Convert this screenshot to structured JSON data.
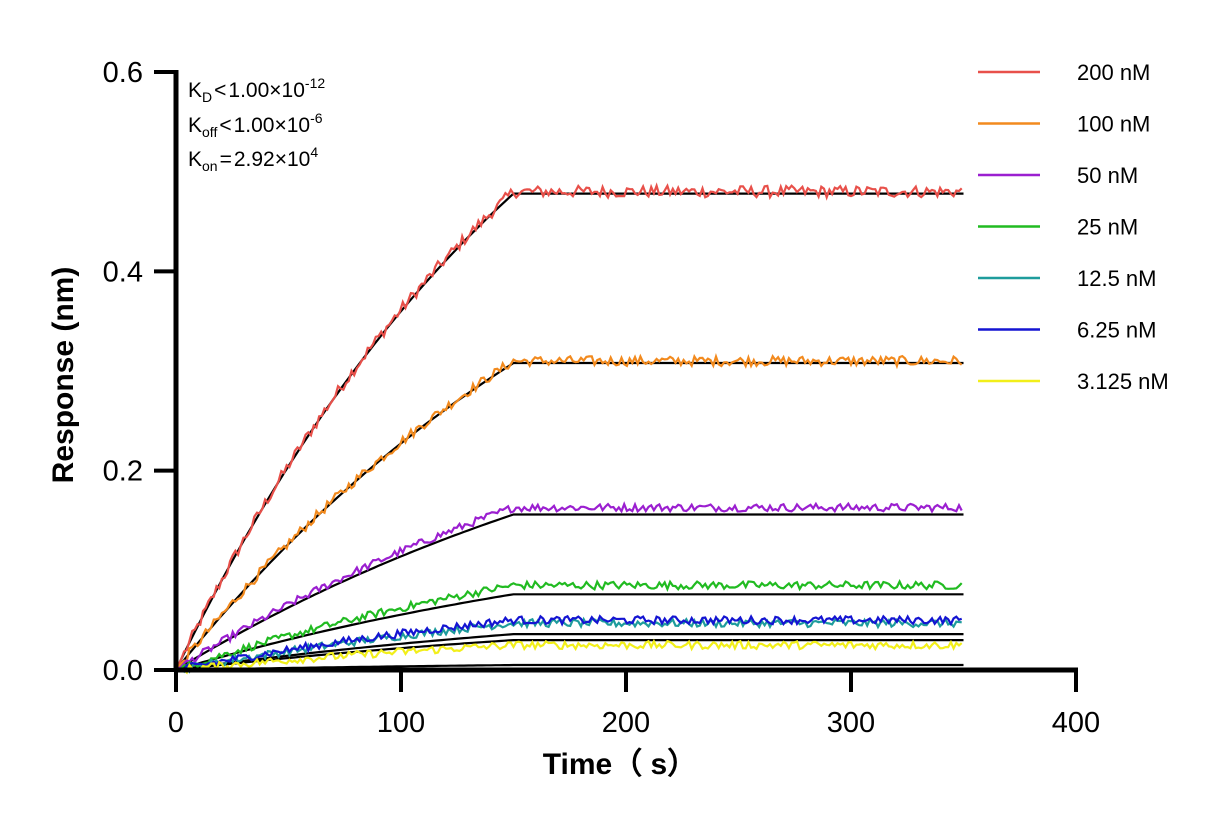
{
  "chart_data": {
    "type": "line",
    "xlabel": "Time（ s）",
    "ylabel": "Response (nm)",
    "xlim": [
      0,
      400
    ],
    "ylim": [
      0,
      0.6
    ],
    "x_ticks": [
      "0",
      "100",
      "200",
      "300",
      "400"
    ],
    "y_ticks": [
      "0.0",
      "0.2",
      "0.4",
      "0.6"
    ],
    "grid": false,
    "legend_position": "right",
    "annotations": {
      "kd": {
        "base": "K",
        "sub": "D",
        "rel": "<",
        "mant": "1.00×10",
        "exp": "-12"
      },
      "koff": {
        "base": "K",
        "sub": "off",
        "rel": "<",
        "mant": "1.00×10",
        "exp": "-6"
      },
      "kon": {
        "base": "K",
        "sub": "on",
        "rel": "=",
        "mant": "2.92×10",
        "exp": "4"
      }
    },
    "association_end_s": 150,
    "end_s": 350,
    "fit_color": "#000000",
    "series": [
      {
        "name": "200 nM",
        "color": "#e8504a",
        "plateau": 0.48,
        "fit_plateau": 0.478,
        "k": 0.0055,
        "noise": 0.006
      },
      {
        "name": "100 nM",
        "color": "#f28a1e",
        "plateau": 0.31,
        "fit_plateau": 0.308,
        "k": 0.0045,
        "noise": 0.005
      },
      {
        "name": "50 nM",
        "color": "#9b1fd0",
        "plateau": 0.163,
        "fit_plateau": 0.156,
        "k": 0.004,
        "noise": 0.004
      },
      {
        "name": "25 nM",
        "color": "#21bb21",
        "plateau": 0.085,
        "fit_plateau": 0.076,
        "k": 0.004,
        "noise": 0.004
      },
      {
        "name": "12.5 nM",
        "color": "#1e9c9c",
        "plateau": 0.047,
        "fit_plateau": 0.036,
        "k": 0.004,
        "noise": 0.004
      },
      {
        "name": "6.25 nM",
        "color": "#1414d2",
        "plateau": 0.05,
        "fit_plateau": 0.03,
        "k": 0.004,
        "noise": 0.004
      },
      {
        "name": "3.125 nM",
        "color": "#f2ef1a",
        "plateau": 0.025,
        "fit_plateau": 0.005,
        "k": 0.004,
        "noise": 0.004
      }
    ]
  }
}
